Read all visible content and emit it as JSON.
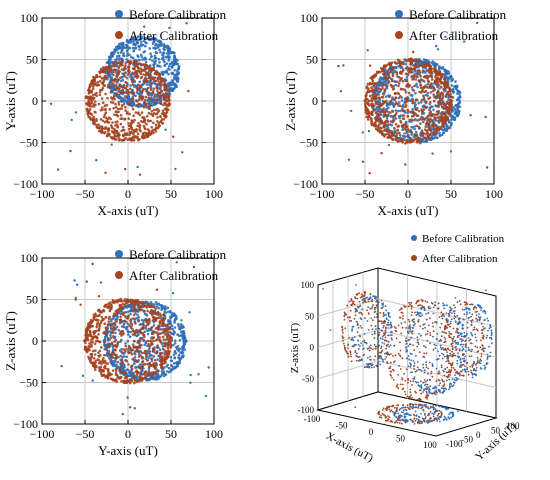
{
  "colors": {
    "before": "#2f6fb8",
    "after": "#a5431f",
    "outlier": "#2e8b57",
    "grid": "#c8c8c8"
  },
  "chart_data": [
    {
      "type": "scatter",
      "xlabel": "X-axis (uT)",
      "ylabel": "Y-axis (uT)",
      "xlim": [
        -100,
        100
      ],
      "ylim": [
        -100,
        100
      ],
      "xticks": [
        "−100",
        "−50",
        "0",
        "50",
        "100"
      ],
      "yticks": [
        "100",
        "50",
        "0",
        "−50",
        "−100"
      ],
      "grid": true,
      "legend_position": "top-right",
      "series": [
        {
          "name": "Before Calibration",
          "shape": "ring",
          "center": [
            17,
            35
          ],
          "radius": 42
        },
        {
          "name": "After Calibration",
          "shape": "ring",
          "center": [
            0,
            0
          ],
          "radius": 48
        }
      ]
    },
    {
      "type": "scatter",
      "xlabel": "X-axis (uT)",
      "ylabel": "Z-axis (uT)",
      "xlim": [
        -100,
        100
      ],
      "ylim": [
        -100,
        100
      ],
      "xticks": [
        "−100",
        "−50",
        "0",
        "50",
        "100"
      ],
      "yticks": [
        "100",
        "50",
        "0",
        "−50",
        "−100"
      ],
      "grid": true,
      "legend_position": "top-right",
      "series": [
        {
          "name": "Before Calibration",
          "shape": "ring",
          "center": [
            10,
            0
          ],
          "radius": 50
        },
        {
          "name": "After Calibration",
          "shape": "ring",
          "center": [
            0,
            0
          ],
          "radius": 50
        }
      ]
    },
    {
      "type": "scatter",
      "xlabel": "Y-axis (uT)",
      "ylabel": "Z-axis (uT)",
      "xlim": [
        -100,
        100
      ],
      "ylim": [
        -100,
        100
      ],
      "xticks": [
        "−100",
        "−50",
        "0",
        "50",
        "100"
      ],
      "yticks": [
        "100",
        "50",
        "0",
        "−50",
        "−100"
      ],
      "grid": true,
      "legend_position": "top-right",
      "series": [
        {
          "name": "Before Calibration",
          "shape": "ring",
          "center": [
            20,
            0
          ],
          "radius": 47
        },
        {
          "name": "After Calibration",
          "shape": "ring",
          "center": [
            0,
            0
          ],
          "radius": 50
        }
      ]
    },
    {
      "type": "scatter",
      "projection": "3d",
      "xlabel": "X-axis (uT)",
      "ylabel": "Y-axis (uT)",
      "zlabel": "Z-axis (uT)",
      "zticks": [
        "100",
        "50",
        "0",
        "-50",
        "-100"
      ],
      "xticks": [
        "-100",
        "-50",
        "0",
        "50",
        "100"
      ],
      "yticks": [
        "100",
        "50",
        "0",
        "-50",
        "-100"
      ],
      "legend_position": "top-right",
      "series": [
        {
          "name": "Before Calibration"
        },
        {
          "name": "After Calibration"
        }
      ]
    }
  ]
}
